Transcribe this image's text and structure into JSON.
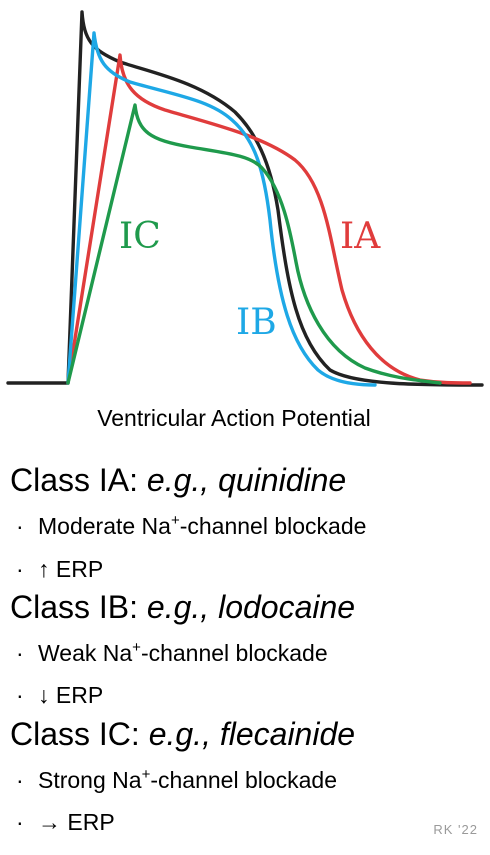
{
  "colors": {
    "baseline": "#222222",
    "IA": "#e03c3c",
    "IB": "#1ea8e6",
    "IC": "#1f9a4c"
  },
  "figure": {
    "title": "Ventricular Action Potential",
    "labels": {
      "ia": "IA",
      "ib": "IB",
      "ic": "IC"
    }
  },
  "classes": [
    {
      "heading_prefix": "Class IA: ",
      "example": "e.g., quinidine",
      "bullet1_pre": "Moderate Na",
      "bullet1_sup": "+",
      "bullet1_post": "-channel blockade",
      "bullet2": "↑ ERP"
    },
    {
      "heading_prefix": "Class IB: ",
      "example": "e.g., lodocaine",
      "bullet1_pre": "Weak Na",
      "bullet1_sup": "+",
      "bullet1_post": "-channel blockade",
      "bullet2": "↓ ERP"
    },
    {
      "heading_prefix": "Class IC: ",
      "example": "e.g., flecainide",
      "bullet1_pre": "Strong Na",
      "bullet1_sup": "+",
      "bullet1_post": "-channel blockade",
      "bullet2": "→ ERP"
    }
  ],
  "bullet_glyph": "·",
  "signature": "RK '22"
}
